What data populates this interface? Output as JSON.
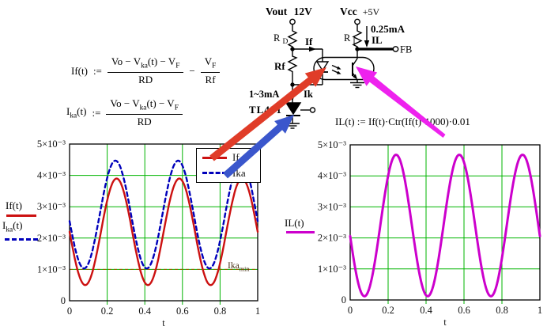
{
  "formulas": {
    "if": {
      "lhs": "If(t)",
      "assign": ":=",
      "num": [
        "Vo − V",
        "ka",
        "(t) − V",
        "F"
      ],
      "den": "RD",
      "operator": "−",
      "num2": [
        "V",
        "F"
      ],
      "den2": "Rf"
    },
    "ika": {
      "lhs": [
        "I",
        "ka",
        "(t)"
      ],
      "assign": ":=",
      "num": [
        "Vo − V",
        "ka",
        "(t) − V",
        "F"
      ],
      "den": "RD"
    },
    "il": {
      "text": "IL(t) := If(t)·Ctr(If(t)·1000)·0.01"
    }
  },
  "circuit": {
    "vout": "Vout",
    "vout_value": "12V",
    "vcc": "Vcc",
    "vcc_value": "+5V",
    "rd": [
      "R",
      "D"
    ],
    "rl": [
      "R",
      "L"
    ],
    "if_label": "If",
    "rf_label": "Rf",
    "il_current": "0.25mA",
    "il_label": "IL",
    "fb": "FB",
    "ik_range": "1~3mA",
    "ik_label": "Ik",
    "tl431": "TL431"
  },
  "colors": {
    "grid_green": "#00b400",
    "if_red": "#cc1111",
    "ika_blue": "#0000bb",
    "il_magenta": "#cc00cc",
    "red_arrow": "#e03c28",
    "blue_arrow": "#3a56cc",
    "magenta_arrow": "#ee22ee",
    "marker_brown": "#a05a00"
  },
  "chart_data": [
    {
      "type": "line",
      "xlabel": "t",
      "xlim": [
        0,
        1
      ],
      "ylim": [
        0,
        0.005
      ],
      "grid": true,
      "grid_color": "#00b400",
      "xticks": [
        {
          "v": 0,
          "label": "0"
        },
        {
          "v": 0.2,
          "label": "0.2"
        },
        {
          "v": 0.4,
          "label": "0.4"
        },
        {
          "v": 0.6,
          "label": "0.6"
        },
        {
          "v": 0.8,
          "label": "0.8"
        },
        {
          "v": 1,
          "label": "1"
        }
      ],
      "yticks": [
        {
          "v": 0.005,
          "label": "5×10⁻³"
        },
        {
          "v": 0.004,
          "label": "4×10⁻³"
        },
        {
          "v": 0.003,
          "label": "3×10⁻³"
        },
        {
          "v": 0.002,
          "label": "2×10⁻³"
        },
        {
          "v": 0.001,
          "label": "1×10⁻³"
        },
        {
          "v": 0,
          "label": "0"
        }
      ],
      "trace_labels": [
        "If(t)",
        "Ika(t)"
      ],
      "trace_ika_parts": [
        "I",
        "ka",
        "(t)"
      ],
      "legend": [
        "If",
        "Ika"
      ],
      "legend_position": "top-right-inside",
      "series": [
        {
          "name": "If",
          "color": "#cc1111",
          "dash": "",
          "width": 2.4,
          "model": "offset - amp*sin(2*pi*cycles*t + phase)",
          "offset": 0.0022,
          "amp": 0.0017,
          "cycles": 3,
          "phase": 0,
          "min": 0.0005,
          "max": 0.0039
        },
        {
          "name": "Ika",
          "color": "#0000bb",
          "dash": "5 4",
          "width": 2.4,
          "model": "offset - amp*sin(2*pi*cycles*t + phase)",
          "offset": 0.00275,
          "amp": 0.00172,
          "cycles": 3,
          "phase": 0.12,
          "min": 0.00103,
          "max": 0.00447
        }
      ],
      "marker": {
        "label": "Ikamin",
        "label_parts": [
          "Ika",
          "min"
        ],
        "value": 0.001,
        "color": "#a05a00",
        "style": "dashed"
      }
    },
    {
      "type": "line",
      "xlabel": "t",
      "xlim": [
        0,
        1
      ],
      "ylim": [
        0,
        0.005
      ],
      "grid": true,
      "grid_color": "#00b400",
      "xticks": [
        {
          "v": 0,
          "label": "0"
        },
        {
          "v": 0.2,
          "label": "0.2"
        },
        {
          "v": 0.4,
          "label": "0.4"
        },
        {
          "v": 0.6,
          "label": "0.6"
        },
        {
          "v": 0.8,
          "label": "0.8"
        },
        {
          "v": 1,
          "label": "1"
        }
      ],
      "yticks": [
        {
          "v": 0.005,
          "label": "5×10⁻³"
        },
        {
          "v": 0.004,
          "label": "4×10⁻³"
        },
        {
          "v": 0.003,
          "label": "3×10⁻³"
        },
        {
          "v": 0.002,
          "label": "2×10⁻³"
        },
        {
          "v": 0.001,
          "label": "1×10⁻³"
        },
        {
          "v": 0,
          "label": "0"
        }
      ],
      "trace_labels": [
        "IL(t)"
      ],
      "series": [
        {
          "name": "IL",
          "color": "#cc00cc",
          "dash": "",
          "width": 3,
          "model": "offset - amp*sin(2*pi*cycles*t + phase)",
          "offset": 0.0024,
          "amp": 0.00228,
          "cycles": 3,
          "phase": 0.15,
          "min": 0.00012,
          "max": 0.00468
        }
      ]
    }
  ]
}
